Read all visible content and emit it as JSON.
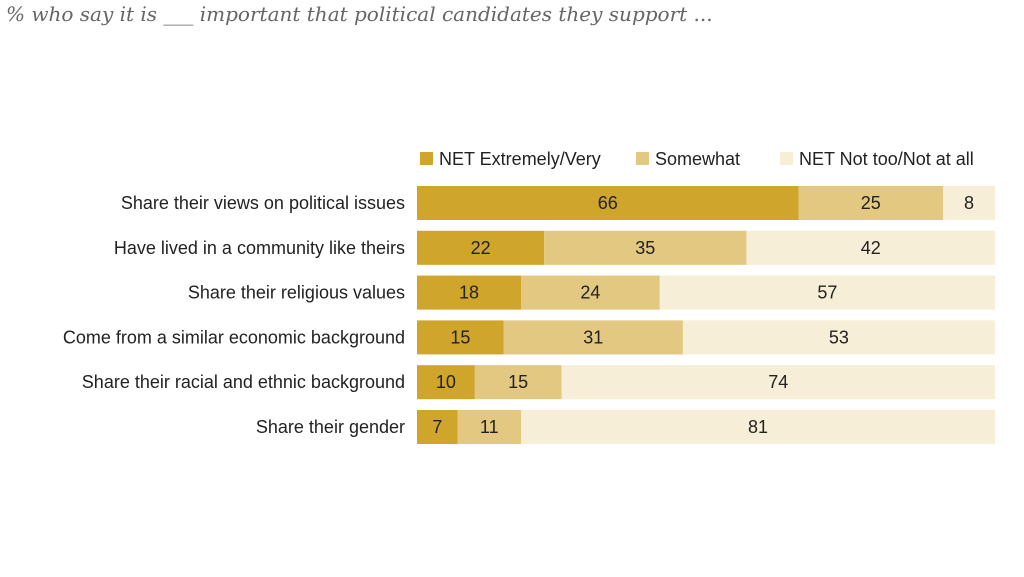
{
  "chart_data": {
    "type": "bar",
    "orientation": "horizontal",
    "stacked": true,
    "subtitle": "% who say it is ___ important that political candidates they support ...",
    "categories": [
      "Share their views on political issues",
      "Have lived in a community like theirs",
      "Share their religious values",
      "Come from a similar economic background",
      "Share their racial and ethnic background",
      "Share their gender"
    ],
    "series": [
      {
        "name": "NET Extremely/Very",
        "color": "#d0a52b",
        "values": [
          66,
          22,
          18,
          15,
          10,
          7
        ]
      },
      {
        "name": "Somewhat",
        "color": "#e2c881",
        "values": [
          25,
          35,
          24,
          31,
          15,
          11
        ]
      },
      {
        "name": "NET Not too/Not at all",
        "color": "#f7eed8",
        "values": [
          8,
          42,
          57,
          53,
          74,
          81
        ]
      }
    ],
    "legend_position": "top",
    "xlim": [
      0,
      100
    ]
  }
}
